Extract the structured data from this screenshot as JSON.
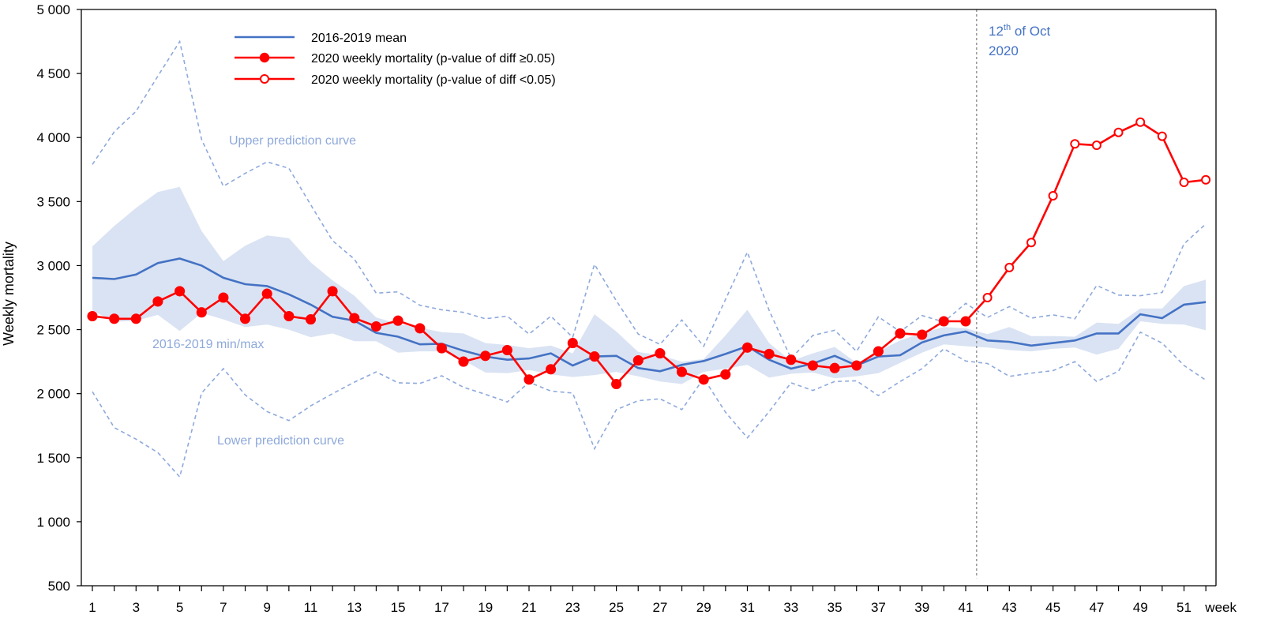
{
  "chart_data": {
    "type": "line",
    "ylabel": "Weekly mortality",
    "x_unit_label": "week",
    "ylim": [
      500,
      5000
    ],
    "yticks": [
      500,
      1000,
      1500,
      2000,
      2500,
      3000,
      3500,
      4000,
      4500,
      5000
    ],
    "ytick_labels": [
      "500",
      "1 000",
      "1 500",
      "2 000",
      "2 500",
      "3 000",
      "3 500",
      "4 000",
      "4 500",
      "5 000"
    ],
    "xlim": [
      1,
      52
    ],
    "xtick_labels": [
      "1",
      "3",
      "5",
      "7",
      "9",
      "11",
      "13",
      "15",
      "17",
      "19",
      "21",
      "23",
      "25",
      "27",
      "29",
      "31",
      "33",
      "35",
      "37",
      "39",
      "41",
      "43",
      "45",
      "47",
      "49",
      "51"
    ],
    "legend": {
      "position": "top-left",
      "entries": [
        {
          "label": "2016-2019 mean",
          "color": "#4472c4",
          "marker": "none"
        },
        {
          "label": "2020 weekly mortality (p-value of diff ≥0.05)",
          "color": "#ff0000",
          "marker": "filled-circle"
        },
        {
          "label": "2020 weekly mortality (p-value of diff <0.05)",
          "color": "#ff0000",
          "marker": "open-circle"
        }
      ]
    },
    "annotations": {
      "upper_curve": "Upper prediction curve",
      "lower_curve": "Lower prediction curve",
      "minmax": "2016-2019 min/max",
      "vline_label_base": "12",
      "vline_label_sup": "th",
      "vline_label_rest": " of Oct",
      "vline_label_year": "2020",
      "vline_x": 42
    },
    "colors": {
      "mean": "#4472c4",
      "band": "#dae3f3",
      "pred": "#8ea9db",
      "red": "#ff0000",
      "vline": "#7f7f7f"
    },
    "weeks": [
      1,
      2,
      3,
      4,
      5,
      6,
      7,
      8,
      9,
      10,
      11,
      12,
      13,
      14,
      15,
      16,
      17,
      18,
      19,
      20,
      21,
      22,
      23,
      24,
      25,
      26,
      27,
      28,
      29,
      30,
      31,
      32,
      33,
      34,
      35,
      36,
      37,
      38,
      39,
      40,
      41,
      42,
      43,
      44,
      45,
      46,
      47,
      48,
      49,
      50,
      51,
      52
    ],
    "series": [
      {
        "name": "2016-2019 mean",
        "values": [
          2905,
          2895,
          2930,
          3020,
          3055,
          3000,
          2905,
          2855,
          2840,
          2775,
          2695,
          2600,
          2570,
          2475,
          2445,
          2385,
          2390,
          2335,
          2290,
          2265,
          2275,
          2315,
          2220,
          2290,
          2295,
          2200,
          2175,
          2225,
          2255,
          2310,
          2370,
          2265,
          2195,
          2235,
          2295,
          2220,
          2290,
          2300,
          2400,
          2455,
          2485,
          2415,
          2405,
          2375,
          2395,
          2415,
          2470,
          2470,
          2620,
          2590,
          2695,
          2715
        ]
      },
      {
        "name": "2020 weekly mortality",
        "values": [
          2605,
          2585,
          2585,
          2720,
          2800,
          2635,
          2750,
          2585,
          2780,
          2605,
          2580,
          2800,
          2590,
          2525,
          2570,
          2510,
          2355,
          2250,
          2295,
          2340,
          2110,
          2190,
          2395,
          2290,
          2075,
          2260,
          2315,
          2170,
          2110,
          2150,
          2360,
          2310,
          2265,
          2220,
          2200,
          2220,
          2330,
          2470,
          2460,
          2565,
          2565,
          2750,
          2985,
          3180,
          3545,
          3950,
          3940,
          4040,
          4120,
          4010,
          3650,
          3670
        ],
        "significant": [
          false,
          false,
          false,
          false,
          false,
          false,
          false,
          false,
          false,
          false,
          false,
          false,
          false,
          false,
          false,
          false,
          false,
          false,
          false,
          false,
          false,
          false,
          false,
          false,
          false,
          false,
          false,
          false,
          false,
          false,
          false,
          false,
          false,
          false,
          false,
          false,
          false,
          false,
          false,
          false,
          false,
          true,
          true,
          true,
          true,
          true,
          true,
          true,
          true,
          true,
          true,
          true
        ]
      },
      {
        "name": "2016-2019 max",
        "values": [
          3150,
          3310,
          3450,
          3575,
          3615,
          3270,
          3035,
          3155,
          3235,
          3215,
          3025,
          2885,
          2765,
          2595,
          2545,
          2515,
          2480,
          2470,
          2395,
          2380,
          2355,
          2375,
          2315,
          2620,
          2485,
          2325,
          2300,
          2250,
          2270,
          2455,
          2655,
          2395,
          2255,
          2315,
          2365,
          2240,
          2330,
          2415,
          2475,
          2520,
          2510,
          2465,
          2520,
          2450,
          2450,
          2445,
          2555,
          2545,
          2665,
          2665,
          2840,
          2890
        ]
      },
      {
        "name": "2016-2019 min",
        "values": [
          2650,
          2560,
          2570,
          2615,
          2490,
          2630,
          2580,
          2520,
          2540,
          2500,
          2440,
          2470,
          2410,
          2410,
          2320,
          2330,
          2330,
          2260,
          2165,
          2160,
          2185,
          2150,
          2130,
          2145,
          2170,
          2135,
          2095,
          2075,
          2170,
          2195,
          2225,
          2125,
          2155,
          2165,
          2120,
          2135,
          2160,
          2240,
          2320,
          2385,
          2370,
          2360,
          2340,
          2330,
          2350,
          2360,
          2305,
          2350,
          2565,
          2545,
          2540,
          2495
        ]
      },
      {
        "name": "Upper prediction curve",
        "values": [
          3790,
          4045,
          4205,
          4480,
          4750,
          3985,
          3620,
          3720,
          3810,
          3760,
          3475,
          3195,
          3050,
          2785,
          2795,
          2690,
          2655,
          2635,
          2585,
          2605,
          2465,
          2605,
          2440,
          3010,
          2725,
          2465,
          2385,
          2575,
          2370,
          2735,
          3105,
          2650,
          2275,
          2455,
          2495,
          2330,
          2600,
          2485,
          2610,
          2560,
          2705,
          2595,
          2680,
          2590,
          2615,
          2585,
          2845,
          2770,
          2765,
          2790,
          3170,
          3325
        ]
      },
      {
        "name": "Lower prediction curve",
        "values": [
          2015,
          1735,
          1645,
          1540,
          1350,
          2005,
          2195,
          1990,
          1860,
          1790,
          1905,
          2000,
          2090,
          2170,
          2085,
          2080,
          2140,
          2050,
          1995,
          1935,
          2090,
          2020,
          2005,
          1570,
          1875,
          1945,
          1960,
          1875,
          2120,
          1855,
          1655,
          1860,
          2085,
          2025,
          2095,
          2100,
          1985,
          2095,
          2195,
          2350,
          2255,
          2235,
          2135,
          2160,
          2180,
          2250,
          2095,
          2175,
          2480,
          2395,
          2220,
          2105
        ]
      }
    ]
  }
}
